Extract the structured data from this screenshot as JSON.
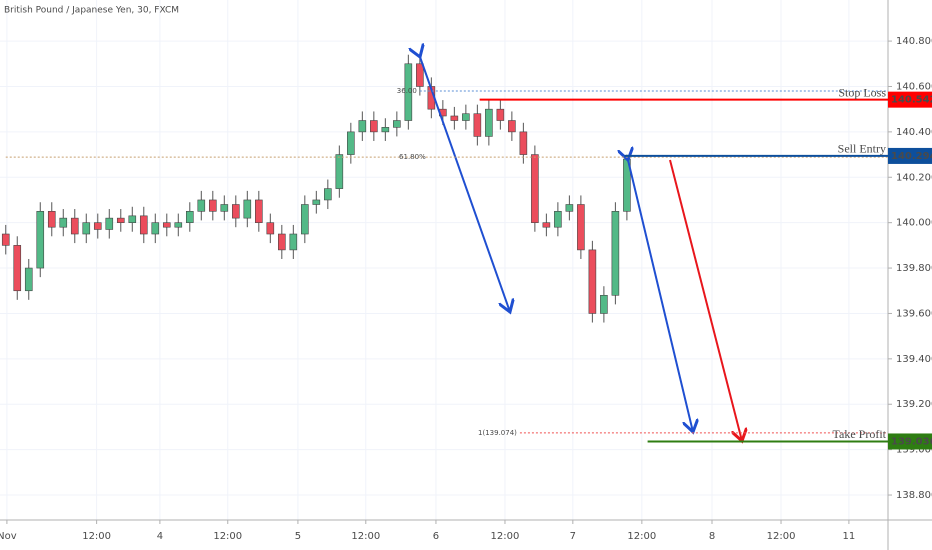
{
  "chart_data": {
    "type": "candlestick",
    "title": "British Pound / Japanese Yen, 30, FXCM",
    "open": [
      139.95,
      139.9,
      139.7,
      139.8,
      140.05,
      139.98,
      140.02,
      139.95,
      140.0,
      139.97,
      140.02,
      140.0,
      140.03,
      139.95,
      140.0,
      139.98,
      140.0,
      140.05,
      140.1,
      140.05,
      140.08,
      140.02,
      140.1,
      140.0,
      139.95,
      139.88,
      139.95,
      140.08,
      140.1,
      140.15,
      140.3,
      140.4,
      140.45,
      140.4,
      140.42,
      140.45,
      140.7,
      140.6,
      140.5,
      140.47,
      140.45,
      140.48,
      140.38,
      140.5,
      140.45,
      140.4,
      140.3,
      140.0,
      139.98,
      140.05,
      140.08,
      139.88,
      139.6,
      139.68,
      140.05
    ],
    "high": [
      139.99,
      139.94,
      139.84,
      140.09,
      140.09,
      140.06,
      140.06,
      140.04,
      140.04,
      140.06,
      140.06,
      140.07,
      140.07,
      140.04,
      140.04,
      140.04,
      140.09,
      140.14,
      140.14,
      140.12,
      140.12,
      140.14,
      140.14,
      140.04,
      139.99,
      139.99,
      140.12,
      140.14,
      140.19,
      140.34,
      140.44,
      140.49,
      140.49,
      140.46,
      140.49,
      140.74,
      140.74,
      140.64,
      140.54,
      140.51,
      140.52,
      140.52,
      140.54,
      140.54,
      140.49,
      140.44,
      140.34,
      140.04,
      140.09,
      140.12,
      140.12,
      139.92,
      139.72,
      140.09,
      140.3
    ],
    "low": [
      139.86,
      139.66,
      139.66,
      139.76,
      139.94,
      139.94,
      139.91,
      139.91,
      139.93,
      139.93,
      139.96,
      139.96,
      139.91,
      139.91,
      139.94,
      139.94,
      139.96,
      140.01,
      140.01,
      140.01,
      139.98,
      139.98,
      139.96,
      139.91,
      139.84,
      139.84,
      139.91,
      140.04,
      140.06,
      140.11,
      140.26,
      140.36,
      140.36,
      140.36,
      140.38,
      140.41,
      140.56,
      140.46,
      140.43,
      140.41,
      140.41,
      140.34,
      140.34,
      140.41,
      140.36,
      140.26,
      139.96,
      139.94,
      139.94,
      140.01,
      139.84,
      139.56,
      139.56,
      139.64,
      140.01
    ],
    "close": [
      139.9,
      139.7,
      139.8,
      140.05,
      139.98,
      140.02,
      139.95,
      140.0,
      139.97,
      140.02,
      140.0,
      140.03,
      139.95,
      140.0,
      139.98,
      140.0,
      140.05,
      140.1,
      140.05,
      140.08,
      140.02,
      140.1,
      140.0,
      139.95,
      139.88,
      139.95,
      140.08,
      140.1,
      140.15,
      140.3,
      140.4,
      140.45,
      140.4,
      140.42,
      140.45,
      140.7,
      140.6,
      140.5,
      140.47,
      140.45,
      140.48,
      140.38,
      140.5,
      140.45,
      140.4,
      140.3,
      140.0,
      139.98,
      140.05,
      140.08,
      139.88,
      139.6,
      139.68,
      140.05,
      140.28
    ],
    "up_color": "#53b987",
    "down_color": "#eb4d5c",
    "grid": true,
    "ylim": [
      138.69,
      140.981
    ],
    "yticks": [
      {
        "value": 138.8,
        "label": "138.800"
      },
      {
        "value": 139.0,
        "label": "139.000"
      },
      {
        "value": 139.2,
        "label": "139.200"
      },
      {
        "value": 139.4,
        "label": "139.400"
      },
      {
        "value": 139.6,
        "label": "139.600"
      },
      {
        "value": 139.8,
        "label": "139.800"
      },
      {
        "value": 140.0,
        "label": "140.000"
      },
      {
        "value": 140.2,
        "label": "140.200"
      },
      {
        "value": 140.4,
        "label": "140.400"
      },
      {
        "value": 140.6,
        "label": "140.600"
      },
      {
        "value": 140.8,
        "label": "140.800"
      }
    ],
    "xlim": [
      -0.5,
      76.7
    ],
    "xticks": [
      {
        "value": 0.1,
        "label": "Nov"
      },
      {
        "value": 7.9,
        "label": "12:00"
      },
      {
        "value": 13.4,
        "label": "4"
      },
      {
        "value": 19.3,
        "label": "12:00"
      },
      {
        "value": 25.4,
        "label": "5"
      },
      {
        "value": 31.3,
        "label": "12:00"
      },
      {
        "value": 37.4,
        "label": "6"
      },
      {
        "value": 43.4,
        "label": "12:00"
      },
      {
        "value": 49.3,
        "label": "7"
      },
      {
        "value": 55.3,
        "label": "12:00"
      },
      {
        "value": 61.4,
        "label": "8"
      },
      {
        "value": 67.4,
        "label": "12:00"
      },
      {
        "value": 73.3,
        "label": "11"
      }
    ],
    "levels": [
      {
        "label": "Stop Loss",
        "value": 140.542,
        "color": "#ff0000",
        "x_start": 41.2
      },
      {
        "label": "Sell Entry",
        "value": 140.294,
        "color": "#0d4f9c",
        "x_start": 53.8
      },
      {
        "label": "Take Profit",
        "value": 139.036,
        "color": "#2e7d12",
        "x_start": 55.8
      }
    ],
    "fib_levels": [
      {
        "label": "36.00",
        "value": 140.58,
        "color": "#5b8fd6",
        "x_start": 36
      },
      {
        "label": "61.80%",
        "value": 140.289,
        "color": "#c8a070",
        "x_start": 0
      },
      {
        "label": "1(139.074)",
        "value": 139.074,
        "color": "#f05050",
        "x_start": 44.7
      }
    ]
  }
}
